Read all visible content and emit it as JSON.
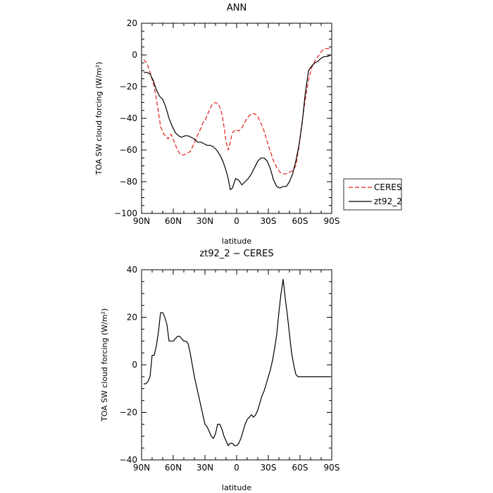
{
  "chart_data": [
    {
      "type": "line",
      "title": "ANN",
      "xlabel": "latitude",
      "ylabel": "TOA SW cloud forcing (W/m²)",
      "xlim": [
        90,
        -90
      ],
      "ylim": [
        -100,
        20
      ],
      "x_ticks": [
        90,
        60,
        30,
        0,
        -30,
        -60,
        -90
      ],
      "x_tick_labels": [
        "90N",
        "60N",
        "30N",
        "0",
        "30S",
        "60S",
        "90S"
      ],
      "y_ticks": [
        -100,
        -80,
        -60,
        -40,
        -20,
        0,
        20
      ],
      "y_tick_labels": [
        "−100",
        "−80",
        "−60",
        "−40",
        "−20",
        "0",
        "20"
      ],
      "legend_position": "outside-right",
      "series": [
        {
          "name": "CERES",
          "color": "#e0201b",
          "dash": "dashed",
          "x": [
            88,
            85,
            82,
            78,
            75,
            72,
            69,
            67,
            65,
            62,
            59,
            56,
            53,
            50,
            47,
            44,
            41,
            38,
            35,
            32,
            29,
            26,
            23,
            20,
            17,
            14,
            12,
            10,
            8,
            6,
            4,
            1,
            -2,
            -5,
            -8,
            -11,
            -14,
            -17,
            -20,
            -23,
            -26,
            -29,
            -32,
            -35,
            -38,
            -41,
            -44,
            -47,
            -50,
            -53,
            -56,
            -59,
            -62,
            -65,
            -68,
            -71,
            -74,
            -77,
            -80,
            -83,
            -86,
            -89
          ],
          "y": [
            -3,
            -5,
            -11,
            -20,
            -32,
            -45,
            -50,
            -51,
            -53,
            -50,
            -55,
            -60,
            -63,
            -63,
            -62,
            -61,
            -57,
            -52,
            -48,
            -43,
            -40,
            -35,
            -31,
            -30,
            -31,
            -37,
            -45,
            -55,
            -60,
            -55,
            -49,
            -47,
            -48,
            -46,
            -42,
            -39,
            -37,
            -37,
            -39,
            -43,
            -48,
            -55,
            -61,
            -67,
            -71,
            -74,
            -75,
            -75,
            -74,
            -73,
            -70,
            -58,
            -42,
            -28,
            -16,
            -8,
            -4,
            -1,
            2,
            4,
            4,
            4
          ]
        },
        {
          "name": "zt92_2",
          "color": "#000000",
          "dash": "solid",
          "x": [
            88,
            85,
            82,
            79,
            76,
            73,
            70,
            67,
            64,
            61,
            58,
            55,
            52,
            49,
            46,
            43,
            40,
            37,
            34,
            31,
            28,
            25,
            22,
            19,
            16,
            13,
            10,
            8,
            6,
            4,
            1,
            -2,
            -5,
            -8,
            -11,
            -14,
            -17,
            -20,
            -23,
            -26,
            -29,
            -32,
            -35,
            -38,
            -41,
            -44,
            -47,
            -50,
            -53,
            -56,
            -59,
            -62,
            -65,
            -68,
            -71,
            -74,
            -77,
            -80,
            -83,
            -86,
            -89
          ],
          "y": [
            -11,
            -11,
            -12,
            -16,
            -22,
            -26,
            -28,
            -33,
            -40,
            -45,
            -49,
            -51,
            -52,
            -51,
            -51,
            -52,
            -53,
            -55,
            -55,
            -56,
            -57,
            -57,
            -58,
            -60,
            -63,
            -67,
            -73,
            -78,
            -85,
            -84,
            -78,
            -79,
            -82,
            -80,
            -78,
            -75,
            -71,
            -67,
            -65,
            -65,
            -67,
            -72,
            -79,
            -83,
            -84,
            -83,
            -83,
            -80,
            -75,
            -67,
            -57,
            -43,
            -24,
            -10,
            -7,
            -5,
            -4,
            -2,
            -1,
            -1,
            0
          ]
        }
      ]
    },
    {
      "type": "line",
      "title": "zt92_2 − CERES",
      "xlabel": "latitude",
      "ylabel": "TOA SW cloud forcing (W/m²)",
      "xlim": [
        90,
        -90
      ],
      "ylim": [
        -40,
        40
      ],
      "x_ticks": [
        90,
        60,
        30,
        0,
        -30,
        -60,
        -90
      ],
      "x_tick_labels": [
        "90N",
        "60N",
        "30N",
        "0",
        "30S",
        "60S",
        "90S"
      ],
      "y_ticks": [
        -40,
        -20,
        0,
        20,
        40
      ],
      "y_tick_labels": [
        "−40",
        "−20",
        "0",
        "20",
        "40"
      ],
      "series": [
        {
          "color": "#000000",
          "dash": "solid",
          "x": [
            88,
            86,
            84,
            82,
            80,
            78,
            76,
            74,
            72,
            70,
            68,
            66,
            64,
            62,
            60,
            58,
            56,
            54,
            52,
            50,
            48,
            46,
            44,
            42,
            40,
            38,
            36,
            34,
            32,
            30,
            28,
            26,
            24,
            22,
            20,
            18,
            16,
            14,
            12,
            10,
            8,
            6,
            4,
            2,
            0,
            -2,
            -4,
            -6,
            -8,
            -10,
            -12,
            -14,
            -16,
            -18,
            -20,
            -22,
            -24,
            -26,
            -28,
            -30,
            -32,
            -34,
            -36,
            -38,
            -40,
            -42,
            -44,
            -46,
            -48,
            -50,
            -52,
            -54,
            -56,
            -58,
            -60,
            -62,
            -64,
            -66,
            -68,
            -70,
            -72,
            -74,
            -76,
            -78,
            -80,
            -82,
            -84,
            -86,
            -88
          ],
          "y": [
            -8,
            -8,
            -7,
            -5,
            4,
            4,
            8,
            14,
            22,
            22,
            20,
            17,
            10,
            10,
            10,
            11,
            12,
            12,
            11,
            10,
            10,
            9,
            5,
            0,
            -5,
            -9,
            -13,
            -17,
            -21,
            -25,
            -26,
            -28,
            -30,
            -31,
            -29,
            -25,
            -25,
            -27,
            -30,
            -32,
            -34,
            -33,
            -33,
            -34,
            -34,
            -33,
            -31,
            -28,
            -25,
            -23,
            -22,
            -21,
            -22,
            -21,
            -19,
            -16,
            -13,
            -11,
            -8,
            -5,
            -2,
            2,
            7,
            13,
            22,
            30,
            36,
            28,
            21,
            13,
            5,
            0,
            -4,
            -5,
            -5,
            -5,
            -5,
            -5,
            -5,
            -5,
            -5,
            -5,
            -5,
            -5,
            -5,
            -5,
            -5,
            -5,
            -5
          ]
        }
      ]
    }
  ]
}
